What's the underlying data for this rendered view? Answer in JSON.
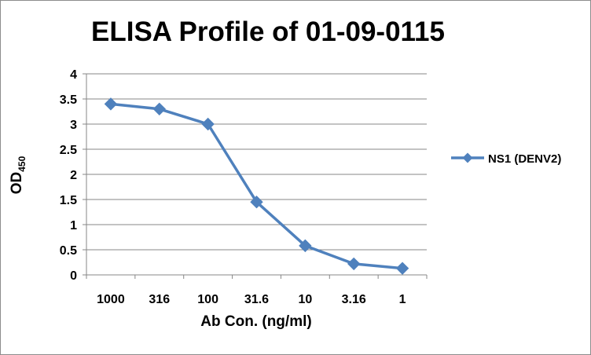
{
  "chart_data": {
    "type": "line",
    "title": "ELISA Profile of 01-09-0115",
    "xlabel": "Ab Con. (ng/ml)",
    "ylabel": {
      "main": "OD",
      "subscript": "450"
    },
    "categories": [
      "1000",
      "316",
      "100",
      "31.6",
      "10",
      "3.16",
      "1"
    ],
    "series": [
      {
        "name": "NS1 (DENV2)",
        "values": [
          3.4,
          3.3,
          3.0,
          1.45,
          0.58,
          0.22,
          0.13
        ],
        "color": "#4f81bd"
      }
    ],
    "ylim": [
      0,
      4
    ],
    "yticks": [
      "0",
      "0.5",
      "1",
      "1.5",
      "2",
      "2.5",
      "3",
      "3.5",
      "4"
    ],
    "grid": true,
    "legend": "right",
    "marker": "diamond"
  }
}
